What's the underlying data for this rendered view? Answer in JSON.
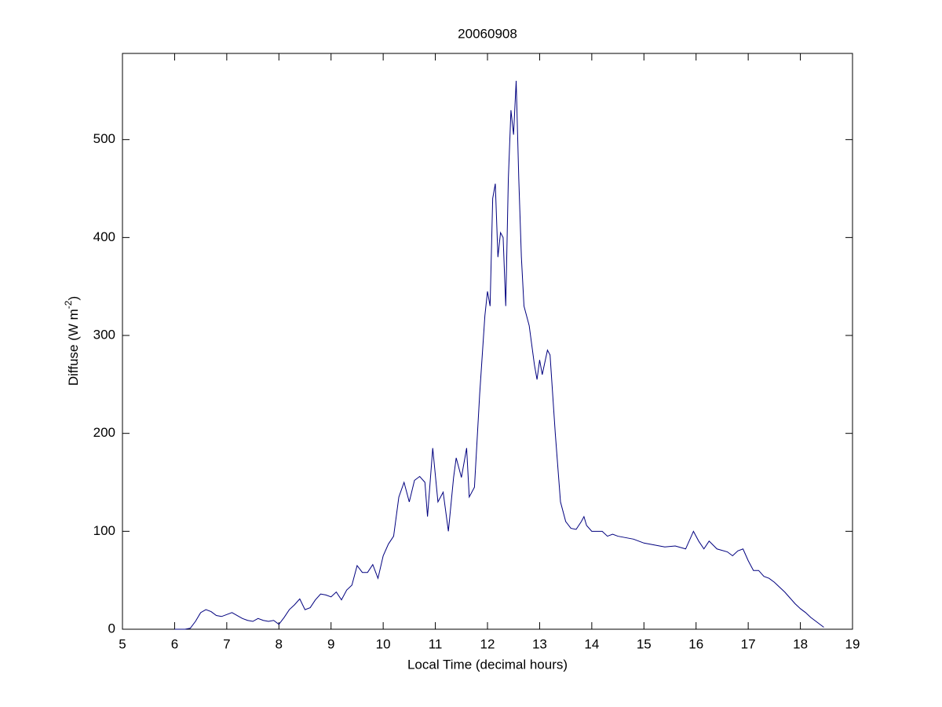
{
  "chart_data": {
    "type": "line",
    "title": "20060908",
    "xlabel": "Local Time (decimal hours)",
    "ylabel": {
      "text": "Diffuse (W m",
      "superscript": "-2",
      "suffix": ")"
    },
    "xlim": [
      5,
      19
    ],
    "xticks": [
      5,
      6,
      7,
      8,
      9,
      10,
      11,
      12,
      13,
      14,
      15,
      16,
      17,
      18,
      19
    ],
    "ylim": [
      0,
      588
    ],
    "yticks": [
      0,
      100,
      200,
      300,
      400,
      500
    ],
    "grid": false,
    "series": [
      {
        "color": "#00007f",
        "x": [
          6.0,
          6.1,
          6.2,
          6.3,
          6.4,
          6.5,
          6.6,
          6.7,
          6.8,
          6.9,
          7.0,
          7.1,
          7.2,
          7.3,
          7.4,
          7.5,
          7.6,
          7.7,
          7.8,
          7.9,
          8.0,
          8.1,
          8.2,
          8.3,
          8.4,
          8.5,
          8.6,
          8.7,
          8.8,
          8.9,
          9.0,
          9.1,
          9.2,
          9.3,
          9.4,
          9.5,
          9.6,
          9.7,
          9.8,
          9.9,
          10.0,
          10.1,
          10.2,
          10.3,
          10.4,
          10.5,
          10.6,
          10.7,
          10.8,
          10.85,
          10.95,
          11.05,
          11.15,
          11.25,
          11.35,
          11.4,
          11.5,
          11.6,
          11.65,
          11.75,
          11.85,
          11.95,
          12.0,
          12.05,
          12.1,
          12.15,
          12.2,
          12.25,
          12.3,
          12.35,
          12.4,
          12.45,
          12.5,
          12.55,
          12.6,
          12.65,
          12.7,
          12.8,
          12.9,
          12.95,
          13.0,
          13.05,
          13.15,
          13.2,
          13.3,
          13.4,
          13.5,
          13.6,
          13.7,
          13.8,
          13.85,
          13.9,
          14.0,
          14.1,
          14.2,
          14.3,
          14.4,
          14.5,
          14.6,
          14.7,
          14.8,
          14.9,
          15.0,
          15.2,
          15.4,
          15.6,
          15.8,
          15.95,
          16.05,
          16.15,
          16.25,
          16.4,
          16.6,
          16.7,
          16.8,
          16.9,
          17.0,
          17.1,
          17.2,
          17.3,
          17.4,
          17.5,
          17.6,
          17.7,
          17.8,
          17.9,
          18.0,
          18.1,
          18.2,
          18.3,
          18.4,
          18.45
        ],
        "values": [
          0,
          0,
          0,
          1,
          8,
          17,
          20,
          18,
          14,
          13,
          15,
          17,
          14,
          11,
          9,
          8,
          11,
          9,
          8,
          9,
          5,
          12,
          20,
          25,
          31,
          20,
          22,
          30,
          36,
          35,
          33,
          38,
          30,
          40,
          45,
          65,
          58,
          58,
          66,
          52,
          75,
          87,
          95,
          135,
          150,
          130,
          152,
          156,
          150,
          115,
          185,
          130,
          140,
          100,
          155,
          175,
          155,
          185,
          135,
          145,
          240,
          320,
          345,
          330,
          440,
          455,
          380,
          405,
          400,
          330,
          460,
          530,
          505,
          560,
          460,
          380,
          330,
          310,
          270,
          255,
          275,
          260,
          285,
          280,
          200,
          130,
          110,
          103,
          102,
          110,
          115,
          106,
          100,
          100,
          100,
          95,
          97,
          95,
          94,
          93,
          92,
          90,
          88,
          86,
          84,
          85,
          82,
          100,
          90,
          82,
          90,
          82,
          79,
          75,
          80,
          82,
          70,
          60,
          60,
          54,
          52,
          48,
          43,
          38,
          32,
          26,
          21,
          17,
          12,
          8,
          4,
          2
        ]
      }
    ]
  }
}
